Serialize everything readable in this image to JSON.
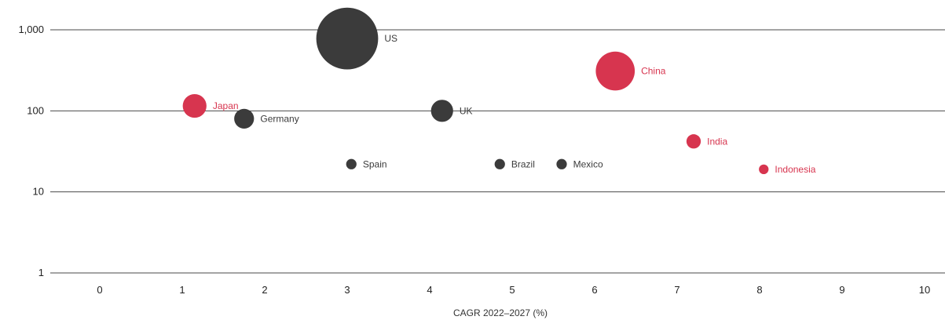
{
  "chart_data": {
    "type": "scatter",
    "variant": "bubble",
    "xlabel": "CAGR 2022–2027 (%)",
    "ylabel": "",
    "xlim": [
      0,
      10
    ],
    "ylim": [
      1,
      1000
    ],
    "y_scale": "log",
    "x_ticks": [
      "0",
      "1",
      "2",
      "3",
      "4",
      "5",
      "6",
      "7",
      "8",
      "9",
      "10"
    ],
    "y_ticks": [
      "1",
      "10",
      "100",
      "1,000"
    ],
    "grid": "horizontal",
    "colors": {
      "highlight": "#d7354f",
      "default": "#3b3b3b"
    },
    "points": [
      {
        "label": "US",
        "x": 3.0,
        "y": 780,
        "size": 780,
        "highlight": false
      },
      {
        "label": "China",
        "x": 6.25,
        "y": 310,
        "size": 310,
        "highlight": true
      },
      {
        "label": "Japan",
        "x": 1.15,
        "y": 115,
        "size": 115,
        "highlight": true
      },
      {
        "label": "UK",
        "x": 4.15,
        "y": 100,
        "size": 100,
        "highlight": false
      },
      {
        "label": "Germany",
        "x": 1.75,
        "y": 80,
        "size": 80,
        "highlight": false
      },
      {
        "label": "India",
        "x": 7.2,
        "y": 42,
        "size": 42,
        "highlight": true
      },
      {
        "label": "Spain",
        "x": 3.05,
        "y": 22,
        "size": 22,
        "highlight": false
      },
      {
        "label": "Brazil",
        "x": 4.85,
        "y": 22,
        "size": 22,
        "highlight": false
      },
      {
        "label": "Mexico",
        "x": 5.6,
        "y": 22,
        "size": 22,
        "highlight": false
      },
      {
        "label": "Indonesia",
        "x": 8.05,
        "y": 19,
        "size": 19,
        "highlight": true
      }
    ]
  }
}
